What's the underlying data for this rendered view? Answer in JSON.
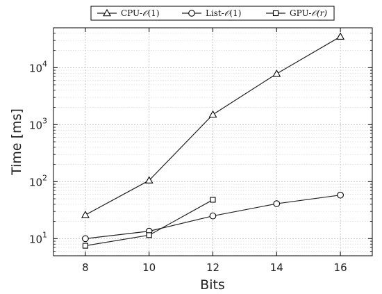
{
  "chart_data": {
    "type": "line",
    "x": [
      8,
      10,
      12,
      14,
      16
    ],
    "xlabel": "Bits",
    "ylabel": "Time [ms]",
    "xlim": [
      7,
      17
    ],
    "ylim": [
      5,
      50000
    ],
    "yscale": "log",
    "xticks": [
      "8",
      "10",
      "12",
      "14",
      "16"
    ],
    "yticks": [
      {
        "value": 10,
        "base": "10",
        "exp": "1"
      },
      {
        "value": 100,
        "base": "10",
        "exp": "2"
      },
      {
        "value": 1000,
        "base": "10",
        "exp": "3"
      },
      {
        "value": 10000,
        "base": "10",
        "exp": "4"
      }
    ],
    "grid": true,
    "legend_position": "top",
    "series": [
      {
        "name_prefix": "CPU-",
        "name_symbol": "𝒪",
        "name_arg": "(1)",
        "name_arg_italic": false,
        "marker": "triangle",
        "x": [
          8,
          10,
          12,
          14,
          16
        ],
        "y": [
          26,
          105,
          1500,
          7800,
          35000
        ]
      },
      {
        "name_prefix": "List-",
        "name_symbol": "𝒪",
        "name_arg": "(1)",
        "name_arg_italic": false,
        "marker": "circle",
        "x": [
          8,
          10,
          12,
          14,
          16
        ],
        "y": [
          10,
          13.5,
          25,
          41,
          58
        ]
      },
      {
        "name_prefix": "GPU-",
        "name_symbol": "𝒪",
        "name_arg": "(r)",
        "name_arg_italic": true,
        "marker": "square",
        "x": [
          8,
          10,
          12
        ],
        "y": [
          7.5,
          11.5,
          48
        ]
      }
    ]
  }
}
